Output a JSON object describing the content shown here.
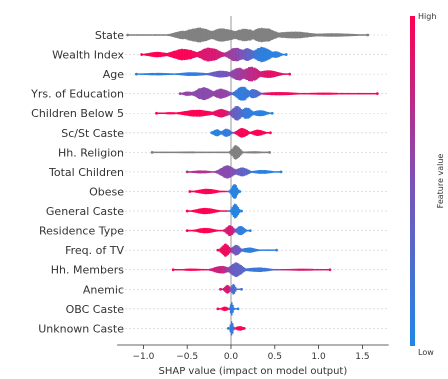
{
  "chart_data": {
    "type": "beeswarm",
    "xlabel": "SHAP value (impact on model output)",
    "xlim": [
      -1.3,
      1.8
    ],
    "xticks": [
      -1.0,
      -0.5,
      0.0,
      0.5,
      1.0,
      1.5
    ],
    "xtick_labels": [
      "−1.0",
      "−0.5",
      "0.0",
      "0.5",
      "1.0",
      "1.5"
    ],
    "colorbar": {
      "label": "Feature value",
      "high_label": "High",
      "low_label": "Low",
      "high_color": "#ff0052",
      "low_color": "#1e88e5",
      "neutral_color": "#808080"
    },
    "features": [
      {
        "name": "State",
        "color_mode": "gray",
        "range": [
          -1.18,
          1.56
        ],
        "segments": [
          {
            "center": -0.55,
            "spread": 0.1,
            "height": 0.55,
            "value": 0.5
          },
          {
            "center": -0.38,
            "spread": 0.14,
            "height": 0.95,
            "value": 0.5
          },
          {
            "center": -0.1,
            "spread": 0.13,
            "height": 0.85,
            "value": 0.5
          },
          {
            "center": 0.15,
            "spread": 0.12,
            "height": 0.8,
            "value": 0.5
          },
          {
            "center": 0.36,
            "spread": 0.12,
            "height": 0.95,
            "value": 0.5
          },
          {
            "center": 0.7,
            "spread": 0.2,
            "height": 0.45,
            "value": 0.5
          },
          {
            "center": 1.15,
            "spread": 0.25,
            "height": 0.22,
            "value": 0.5
          }
        ]
      },
      {
        "name": "Wealth Index",
        "color_mode": "value",
        "range": [
          -1.02,
          0.63
        ],
        "segments": [
          {
            "center": -0.85,
            "spread": 0.1,
            "height": 0.35,
            "value": 1.0
          },
          {
            "center": -0.55,
            "spread": 0.12,
            "height": 0.75,
            "value": 0.98
          },
          {
            "center": -0.25,
            "spread": 0.1,
            "height": 0.9,
            "value": 0.85
          },
          {
            "center": 0.05,
            "spread": 0.08,
            "height": 0.9,
            "value": 0.6
          },
          {
            "center": 0.18,
            "spread": 0.06,
            "height": 0.85,
            "value": 0.35
          },
          {
            "center": 0.35,
            "spread": 0.08,
            "height": 1.0,
            "value": 0.08
          },
          {
            "center": 0.5,
            "spread": 0.05,
            "height": 0.45,
            "value": 0.05
          }
        ]
      },
      {
        "name": "Age",
        "color_mode": "value",
        "range": [
          -1.08,
          0.67
        ],
        "segments": [
          {
            "center": -0.85,
            "spread": 0.18,
            "height": 0.16,
            "value": 0.05
          },
          {
            "center": -0.45,
            "spread": 0.14,
            "height": 0.25,
            "value": 0.1
          },
          {
            "center": -0.12,
            "spread": 0.1,
            "height": 0.45,
            "value": 0.45
          },
          {
            "center": 0.08,
            "spread": 0.07,
            "height": 0.85,
            "value": 0.6
          },
          {
            "center": 0.22,
            "spread": 0.08,
            "height": 0.95,
            "value": 0.75
          },
          {
            "center": 0.42,
            "spread": 0.1,
            "height": 0.5,
            "value": 0.9
          }
        ]
      },
      {
        "name": "Yrs. of Education",
        "color_mode": "value",
        "range": [
          -0.58,
          1.67
        ],
        "segments": [
          {
            "center": -0.5,
            "spread": 0.05,
            "height": 0.3,
            "value": 0.6
          },
          {
            "center": -0.32,
            "spread": 0.08,
            "height": 0.85,
            "value": 0.55
          },
          {
            "center": -0.12,
            "spread": 0.07,
            "height": 0.65,
            "value": 0.6
          },
          {
            "center": 0.12,
            "spread": 0.06,
            "height": 0.95,
            "value": 0.1
          },
          {
            "center": 0.25,
            "spread": 0.05,
            "height": 0.6,
            "value": 0.15
          },
          {
            "center": 0.55,
            "spread": 0.18,
            "height": 0.22,
            "value": 0.95
          },
          {
            "center": 1.05,
            "spread": 0.22,
            "height": 0.14,
            "value": 1.0
          }
        ]
      },
      {
        "name": "Children Below 5",
        "color_mode": "value",
        "range": [
          -0.85,
          0.47
        ],
        "segments": [
          {
            "center": -0.7,
            "spread": 0.08,
            "height": 0.15,
            "value": 1.0
          },
          {
            "center": -0.4,
            "spread": 0.14,
            "height": 0.45,
            "value": 1.0
          },
          {
            "center": -0.12,
            "spread": 0.07,
            "height": 0.55,
            "value": 0.9
          },
          {
            "center": 0.06,
            "spread": 0.05,
            "height": 0.95,
            "value": 0.35
          },
          {
            "center": 0.17,
            "spread": 0.05,
            "height": 0.75,
            "value": 0.1
          },
          {
            "center": 0.32,
            "spread": 0.07,
            "height": 0.4,
            "value": 0.05
          }
        ]
      },
      {
        "name": "Sc/St Caste",
        "color_mode": "value",
        "range": [
          -0.22,
          0.45
        ],
        "segments": [
          {
            "center": -0.17,
            "spread": 0.04,
            "height": 0.45,
            "value": 0.05
          },
          {
            "center": -0.06,
            "spread": 0.04,
            "height": 0.55,
            "value": 0.1
          },
          {
            "center": 0.12,
            "spread": 0.05,
            "height": 0.65,
            "value": 0.98
          },
          {
            "center": 0.3,
            "spread": 0.06,
            "height": 0.4,
            "value": 1.0
          }
        ]
      },
      {
        "name": "Hh. Religion",
        "color_mode": "gray",
        "range": [
          -0.9,
          0.44
        ],
        "segments": [
          {
            "center": -0.5,
            "spread": 0.2,
            "height": 0.12,
            "value": 0.5
          },
          {
            "center": 0.05,
            "spread": 0.04,
            "height": 0.95,
            "value": 0.5
          },
          {
            "center": 0.25,
            "spread": 0.12,
            "height": 0.15,
            "value": 0.5
          }
        ]
      },
      {
        "name": "Total Children",
        "color_mode": "value",
        "range": [
          -0.5,
          0.57
        ],
        "segments": [
          {
            "center": -0.35,
            "spread": 0.1,
            "height": 0.2,
            "value": 0.7
          },
          {
            "center": -0.05,
            "spread": 0.07,
            "height": 0.85,
            "value": 0.55
          },
          {
            "center": 0.12,
            "spread": 0.06,
            "height": 0.6,
            "value": 0.35
          },
          {
            "center": 0.35,
            "spread": 0.1,
            "height": 0.25,
            "value": 0.05
          }
        ]
      },
      {
        "name": "Obese",
        "color_mode": "value",
        "range": [
          -0.47,
          0.1
        ],
        "segments": [
          {
            "center": -0.28,
            "spread": 0.1,
            "height": 0.35,
            "value": 1.0
          },
          {
            "center": 0.03,
            "spread": 0.03,
            "height": 1.0,
            "value": 0.05
          }
        ]
      },
      {
        "name": "General Caste",
        "color_mode": "value",
        "range": [
          -0.5,
          0.12
        ],
        "segments": [
          {
            "center": -0.3,
            "spread": 0.1,
            "height": 0.4,
            "value": 1.0
          },
          {
            "center": 0.04,
            "spread": 0.03,
            "height": 1.0,
            "value": 0.05
          }
        ]
      },
      {
        "name": "Residence Type",
        "color_mode": "value",
        "range": [
          -0.5,
          0.22
        ],
        "segments": [
          {
            "center": -0.3,
            "spread": 0.09,
            "height": 0.35,
            "value": 1.0
          },
          {
            "center": -0.02,
            "spread": 0.04,
            "height": 0.7,
            "value": 0.85
          },
          {
            "center": 0.1,
            "spread": 0.04,
            "height": 0.6,
            "value": 0.08
          }
        ]
      },
      {
        "name": "Freq. of TV",
        "color_mode": "value",
        "range": [
          -0.15,
          0.52
        ],
        "segments": [
          {
            "center": -0.07,
            "spread": 0.04,
            "height": 0.85,
            "value": 0.95
          },
          {
            "center": 0.05,
            "spread": 0.04,
            "height": 0.7,
            "value": 0.45
          },
          {
            "center": 0.2,
            "spread": 0.07,
            "height": 0.35,
            "value": 0.08
          }
        ]
      },
      {
        "name": "Hh. Members",
        "color_mode": "value",
        "range": [
          -0.66,
          1.13
        ],
        "segments": [
          {
            "center": -0.45,
            "spread": 0.12,
            "height": 0.15,
            "value": 1.0
          },
          {
            "center": -0.12,
            "spread": 0.08,
            "height": 0.5,
            "value": 0.8
          },
          {
            "center": 0.05,
            "spread": 0.06,
            "height": 0.95,
            "value": 0.35
          },
          {
            "center": 0.3,
            "spread": 0.12,
            "height": 0.3,
            "value": 0.15
          },
          {
            "center": 0.8,
            "spread": 0.18,
            "height": 0.14,
            "value": 0.85
          }
        ]
      },
      {
        "name": "Anemic",
        "color_mode": "value",
        "range": [
          -0.12,
          0.12
        ],
        "segments": [
          {
            "center": -0.05,
            "spread": 0.03,
            "height": 0.55,
            "value": 0.85
          },
          {
            "center": 0.02,
            "spread": 0.02,
            "height": 0.7,
            "value": 0.2
          }
        ]
      },
      {
        "name": "OBC Caste",
        "color_mode": "value",
        "range": [
          -0.15,
          0.08
        ],
        "segments": [
          {
            "center": -0.08,
            "spread": 0.03,
            "height": 0.3,
            "value": 1.0
          },
          {
            "center": 0.0,
            "spread": 0.015,
            "height": 0.85,
            "value": 0.1
          }
        ]
      },
      {
        "name": "Unknown Caste",
        "color_mode": "value",
        "range": [
          -0.03,
          0.15
        ],
        "segments": [
          {
            "center": 0.0,
            "spread": 0.015,
            "height": 0.95,
            "value": 0.1
          },
          {
            "center": 0.09,
            "spread": 0.04,
            "height": 0.3,
            "value": 1.0
          }
        ]
      }
    ]
  }
}
